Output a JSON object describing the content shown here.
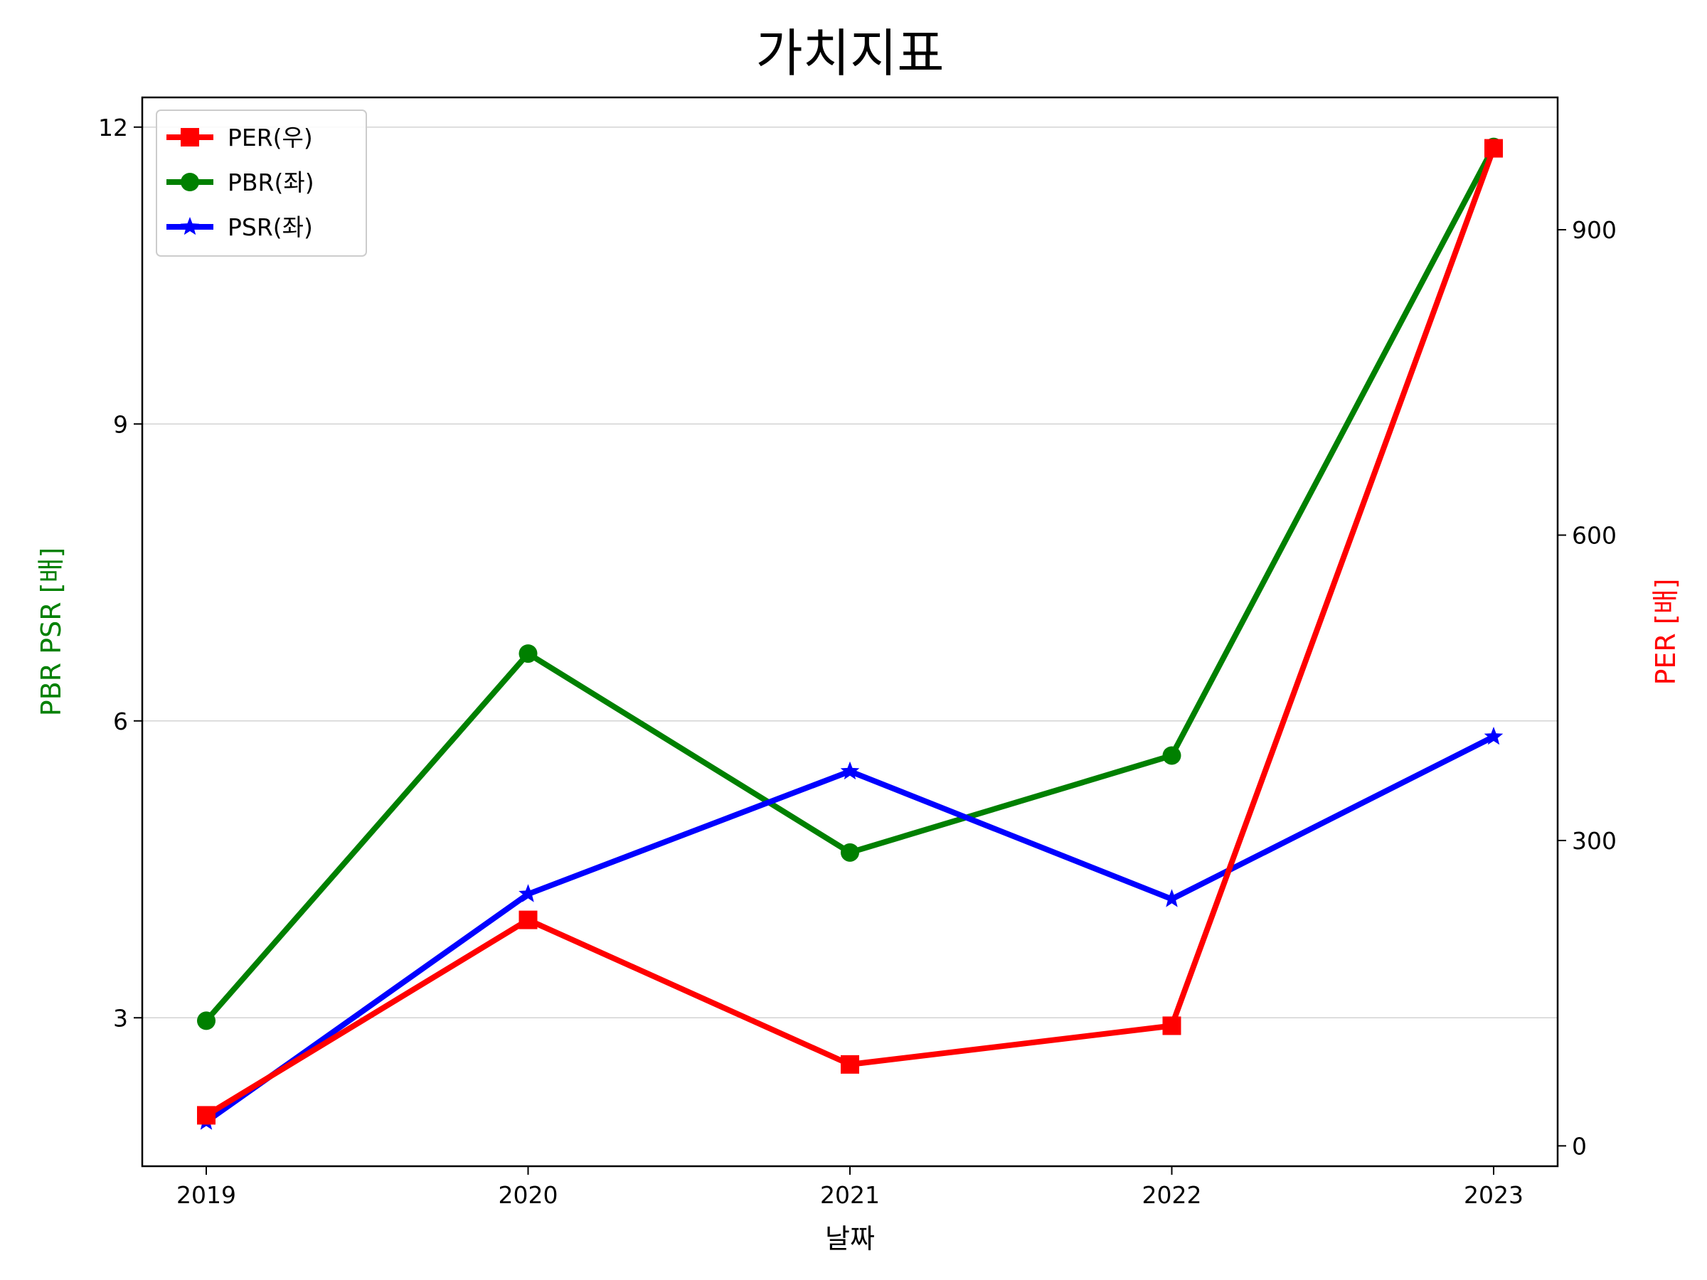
{
  "chart_data": {
    "type": "line",
    "title": "가치지표",
    "xlabel": "날짜",
    "ylabel_left": "PBR PSR [배]",
    "ylabel_right": "PER [배]",
    "ylabel_left_color": "#008000",
    "ylabel_right_color": "#ff0000",
    "categories": [
      "2019",
      "2020",
      "2021",
      "2022",
      "2023"
    ],
    "left_axis": {
      "ylim": [
        1.5,
        12.3
      ],
      "ticks": [
        3,
        6,
        9,
        12
      ]
    },
    "right_axis": {
      "ylim": [
        -20,
        1030
      ],
      "ticks": [
        0,
        300,
        600,
        900
      ]
    },
    "grid": "horizontal",
    "legend_position": "upper left",
    "series": [
      {
        "name": "PER(우)",
        "axis": "right",
        "color": "#ff0000",
        "marker": "square",
        "values": [
          30,
          222,
          80,
          118,
          980
        ]
      },
      {
        "name": "PBR(좌)",
        "axis": "left",
        "color": "#008000",
        "marker": "circle",
        "values": [
          2.97,
          6.68,
          4.67,
          5.65,
          11.8
        ]
      },
      {
        "name": "PSR(좌)",
        "axis": "left",
        "color": "#0000ff",
        "marker": "star",
        "values": [
          1.95,
          4.25,
          5.49,
          4.2,
          5.84
        ]
      }
    ]
  }
}
